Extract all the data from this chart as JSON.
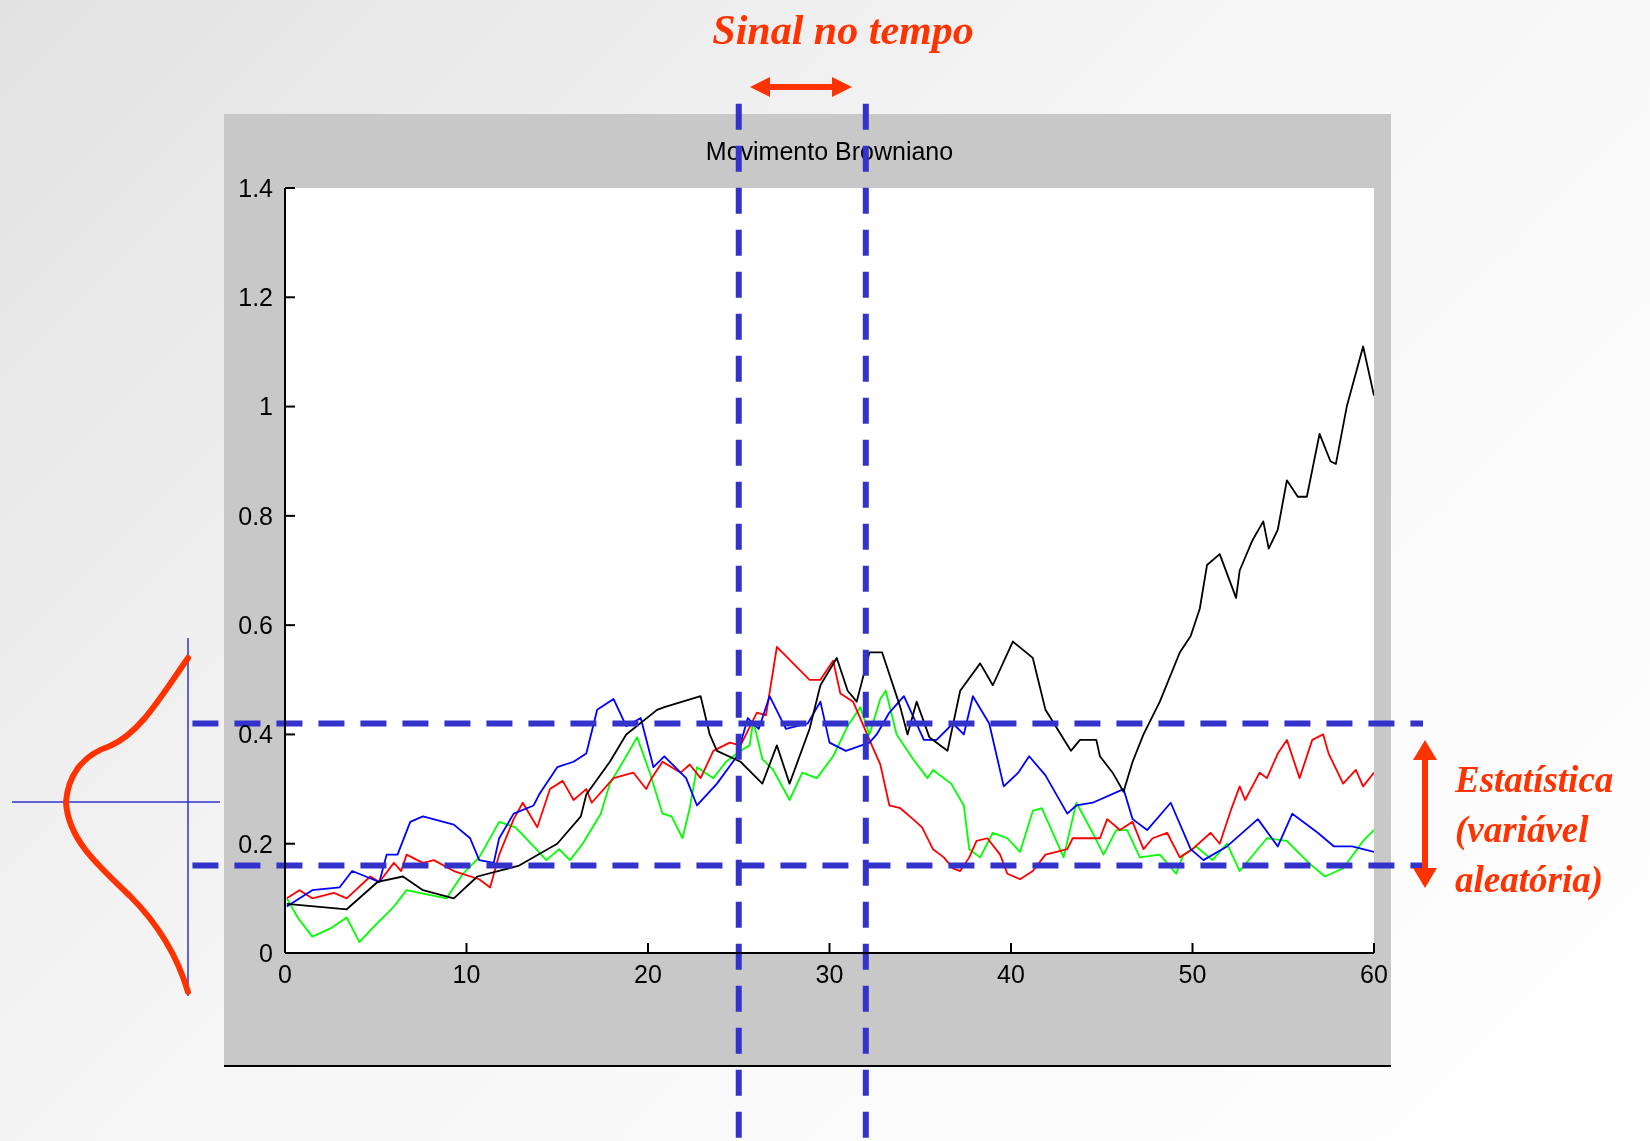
{
  "chart_data": {
    "type": "line",
    "title": "Movimento Browniano",
    "annotations": [
      "Sinal no tempo",
      "Estatística (variável aleatória)"
    ],
    "xlim": [
      0,
      60
    ],
    "xticks": [
      0,
      10,
      20,
      30,
      40,
      50,
      60
    ],
    "ylim": [
      0,
      1.4
    ],
    "yticks": [
      0,
      0.2,
      0.4,
      0.6,
      0.8,
      1,
      1.2,
      1.4
    ],
    "grid": false,
    "marker": "none",
    "line_style": "solid",
    "ref_lines": [
      {
        "axis": "x",
        "value": 25,
        "color": "#3333cc",
        "line_style": "dashed"
      },
      {
        "axis": "x",
        "value": 32,
        "color": "#3333cc",
        "line_style": "dashed"
      },
      {
        "axis": "y",
        "value": 0.42,
        "color": "#3333cc",
        "line_style": "dashed"
      },
      {
        "axis": "y",
        "value": 0.16,
        "color": "#3333cc",
        "line_style": "dashed"
      }
    ],
    "series": [
      {
        "color": "#00ff00",
        "x": [
          0.1,
          0.7,
          1.5,
          2.5,
          3.4,
          4.1,
          4.8,
          6.0,
          6.7,
          7.4,
          8.9,
          9.8,
          10.7,
          11.8,
          12.7,
          13.7,
          14.4,
          15.1,
          15.7,
          16.4,
          17.4,
          17.9,
          18.8,
          19.4,
          20.1,
          20.8,
          21.3,
          21.9,
          22.3,
          22.7,
          23.6,
          24.3,
          25.1,
          25.6,
          25.8,
          26.3,
          26.9,
          27.8,
          28.5,
          29.3,
          30.2,
          31.0,
          31.7,
          32.2,
          32.8,
          33.1,
          33.7,
          34.6,
          35.4,
          35.7,
          36.7,
          37.4,
          37.7,
          38.3,
          39.0,
          39.8,
          40.5,
          41.2,
          41.7,
          42.9,
          43.6,
          44.5,
          45.1,
          45.8,
          46.4,
          47.1,
          48.2,
          49.1,
          49.5,
          50.2,
          51.1,
          51.9,
          52.6,
          54.1,
          55.2,
          56.4,
          57.3,
          58.3,
          59.4,
          60
        ],
        "values": [
          0.1,
          0.065,
          0.03,
          0.045,
          0.065,
          0.02,
          0.045,
          0.085,
          0.115,
          0.11,
          0.1,
          0.145,
          0.175,
          0.24,
          0.23,
          0.195,
          0.17,
          0.19,
          0.17,
          0.2,
          0.255,
          0.31,
          0.36,
          0.395,
          0.33,
          0.255,
          0.25,
          0.21,
          0.265,
          0.34,
          0.32,
          0.35,
          0.37,
          0.38,
          0.425,
          0.355,
          0.335,
          0.28,
          0.33,
          0.32,
          0.36,
          0.415,
          0.45,
          0.4,
          0.465,
          0.48,
          0.4,
          0.355,
          0.32,
          0.335,
          0.31,
          0.27,
          0.19,
          0.175,
          0.22,
          0.21,
          0.185,
          0.26,
          0.265,
          0.175,
          0.275,
          0.22,
          0.18,
          0.225,
          0.225,
          0.175,
          0.18,
          0.145,
          0.18,
          0.195,
          0.17,
          0.2,
          0.15,
          0.21,
          0.205,
          0.165,
          0.14,
          0.155,
          0.205,
          0.225
        ]
      },
      {
        "color": "#ff0000",
        "x": [
          0.1,
          0.8,
          1.5,
          2.7,
          3.4,
          4.7,
          5.2,
          6.0,
          6.4,
          6.7,
          7.6,
          8.2,
          9.3,
          10.7,
          11.3,
          11.8,
          12.6,
          13.1,
          13.9,
          14.6,
          15.3,
          15.9,
          16.6,
          16.9,
          18.1,
          19.2,
          19.9,
          20.2,
          20.8,
          21.8,
          22.3,
          22.9,
          23.6,
          24.5,
          25.1,
          26.0,
          26.5,
          27.1,
          27.4,
          28.9,
          29.5,
          30.2,
          30.6,
          31.3,
          32.4,
          32.8,
          33.3,
          33.9,
          34.6,
          35.1,
          35.7,
          36.3,
          36.8,
          37.2,
          37.7,
          38.1,
          38.7,
          39.4,
          39.8,
          40.5,
          41.2,
          41.9,
          43.1,
          43.4,
          44.9,
          45.3,
          46.0,
          46.7,
          47.3,
          47.8,
          48.6,
          49.3,
          50.0,
          51.0,
          51.5,
          52.1,
          52.6,
          52.9,
          53.7,
          54.1,
          54.7,
          55.2,
          55.9,
          56.6,
          57.2,
          57.5,
          58.3,
          59.0,
          59.4,
          60
        ],
        "values": [
          0.1,
          0.115,
          0.1,
          0.11,
          0.1,
          0.14,
          0.13,
          0.165,
          0.15,
          0.18,
          0.165,
          0.17,
          0.15,
          0.135,
          0.12,
          0.18,
          0.245,
          0.275,
          0.23,
          0.3,
          0.315,
          0.28,
          0.3,
          0.275,
          0.32,
          0.33,
          0.3,
          0.32,
          0.35,
          0.33,
          0.345,
          0.32,
          0.37,
          0.385,
          0.38,
          0.44,
          0.435,
          0.56,
          0.55,
          0.5,
          0.5,
          0.535,
          0.475,
          0.46,
          0.375,
          0.345,
          0.27,
          0.265,
          0.245,
          0.23,
          0.19,
          0.175,
          0.155,
          0.15,
          0.175,
          0.205,
          0.21,
          0.18,
          0.145,
          0.135,
          0.15,
          0.18,
          0.19,
          0.21,
          0.21,
          0.245,
          0.225,
          0.24,
          0.19,
          0.21,
          0.22,
          0.175,
          0.19,
          0.22,
          0.2,
          0.26,
          0.305,
          0.28,
          0.33,
          0.32,
          0.365,
          0.39,
          0.32,
          0.39,
          0.4,
          0.365,
          0.31,
          0.335,
          0.305,
          0.33
        ]
      },
      {
        "color": "#0000ff",
        "x": [
          0.1,
          1.5,
          3.0,
          3.7,
          5.2,
          5.6,
          6.2,
          6.9,
          7.6,
          9.3,
          10.2,
          10.7,
          11.5,
          11.8,
          12.6,
          13.7,
          14.0,
          15.0,
          15.9,
          16.6,
          17.2,
          18.1,
          18.8,
          19.6,
          20.3,
          20.9,
          22.1,
          22.7,
          23.8,
          24.9,
          25.5,
          26.1,
          26.7,
          27.6,
          28.8,
          29.5,
          30.0,
          30.9,
          32.2,
          32.6,
          33.3,
          34.1,
          35.2,
          35.9,
          36.8,
          37.4,
          37.9,
          38.8,
          39.6,
          40.4,
          41.0,
          41.9,
          43.1,
          43.6,
          44.5,
          46.2,
          46.7,
          47.5,
          48.8,
          49.9,
          50.6,
          51.9,
          53.6,
          54.7,
          55.5,
          56.9,
          57.8,
          58.8,
          60
        ],
        "values": [
          0.085,
          0.115,
          0.12,
          0.15,
          0.13,
          0.18,
          0.18,
          0.24,
          0.25,
          0.235,
          0.21,
          0.17,
          0.165,
          0.21,
          0.255,
          0.27,
          0.29,
          0.34,
          0.35,
          0.365,
          0.445,
          0.465,
          0.415,
          0.43,
          0.34,
          0.36,
          0.32,
          0.27,
          0.31,
          0.36,
          0.43,
          0.41,
          0.47,
          0.41,
          0.42,
          0.46,
          0.385,
          0.37,
          0.385,
          0.4,
          0.44,
          0.47,
          0.39,
          0.39,
          0.42,
          0.4,
          0.47,
          0.42,
          0.305,
          0.33,
          0.36,
          0.325,
          0.255,
          0.27,
          0.275,
          0.3,
          0.245,
          0.225,
          0.275,
          0.19,
          0.17,
          0.195,
          0.245,
          0.195,
          0.255,
          0.22,
          0.195,
          0.195,
          0.185
        ]
      },
      {
        "color": "#000000",
        "x": [
          0.1,
          3.4,
          5.1,
          6.5,
          7.6,
          9.3,
          10.6,
          12.9,
          15.0,
          16.3,
          16.6,
          17.9,
          18.8,
          20.5,
          20.9,
          22.9,
          23.4,
          23.8,
          25.1,
          26.3,
          27.1,
          27.8,
          28.9,
          29.5,
          30.4,
          31.0,
          31.5,
          32.2,
          32.9,
          33.9,
          34.3,
          34.8,
          35.5,
          36.5,
          37.2,
          38.3,
          39.0,
          40.1,
          41.2,
          41.9,
          43.3,
          43.8,
          44.7,
          44.9,
          45.6,
          46.2,
          46.7,
          47.3,
          48.2,
          49.3,
          49.9,
          50.4,
          50.8,
          51.5,
          52.4,
          52.6,
          53.3,
          53.9,
          54.2,
          54.7,
          55.2,
          55.8,
          56.3,
          57.0,
          57.6,
          57.9,
          58.5,
          59.4,
          60
        ],
        "values": [
          0.09,
          0.08,
          0.13,
          0.14,
          0.115,
          0.1,
          0.14,
          0.16,
          0.2,
          0.25,
          0.29,
          0.35,
          0.4,
          0.445,
          0.45,
          0.47,
          0.4,
          0.37,
          0.35,
          0.31,
          0.38,
          0.31,
          0.41,
          0.49,
          0.54,
          0.48,
          0.46,
          0.55,
          0.55,
          0.45,
          0.4,
          0.46,
          0.395,
          0.37,
          0.48,
          0.53,
          0.49,
          0.57,
          0.54,
          0.445,
          0.37,
          0.39,
          0.39,
          0.36,
          0.33,
          0.295,
          0.35,
          0.4,
          0.46,
          0.55,
          0.58,
          0.63,
          0.71,
          0.73,
          0.65,
          0.7,
          0.755,
          0.79,
          0.74,
          0.775,
          0.865,
          0.835,
          0.835,
          0.95,
          0.9,
          0.895,
          1.0,
          1.11,
          1.02
        ]
      }
    ]
  }
}
